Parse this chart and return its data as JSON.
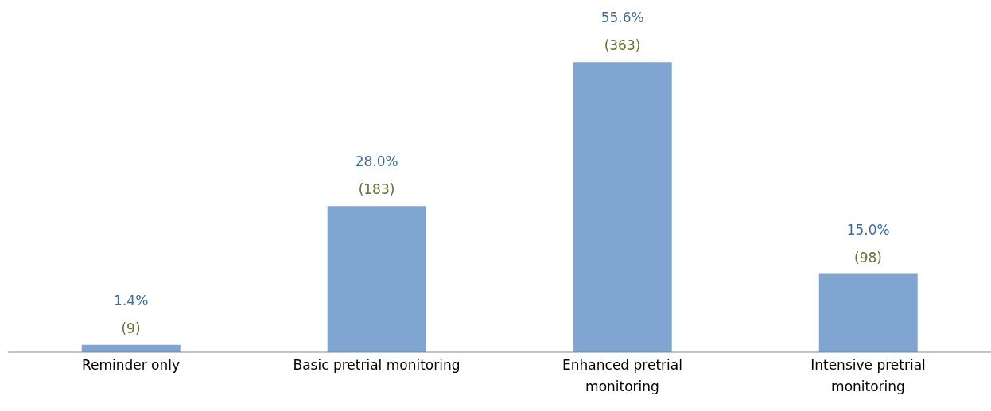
{
  "chart_data": {
    "type": "bar",
    "categories": [
      "Reminder only",
      "Basic pretrial monitoring",
      "Enhanced pretrial monitoring",
      "Intensive pretrial monitoring"
    ],
    "values": [
      1.4,
      28.0,
      55.6,
      15.0
    ],
    "value_labels": [
      "1.4%",
      "28.0%",
      "55.6%",
      "15.0%"
    ],
    "color": "#7fa5d0",
    "annotations": [
      {
        "text": "(9)",
        "x": "Reminder only",
        "y": 1.4
      },
      {
        "text": "(183)",
        "x": "Basic pretrial monitoring",
        "y": 28.0
      },
      {
        "text": "(363)",
        "x": "Enhanced pretrial monitoring",
        "y": 55.6
      },
      {
        "text": "(98)",
        "x": "Intensive pretrial monitoring",
        "y": 15.0
      }
    ],
    "grid": false,
    "legend": false
  }
}
